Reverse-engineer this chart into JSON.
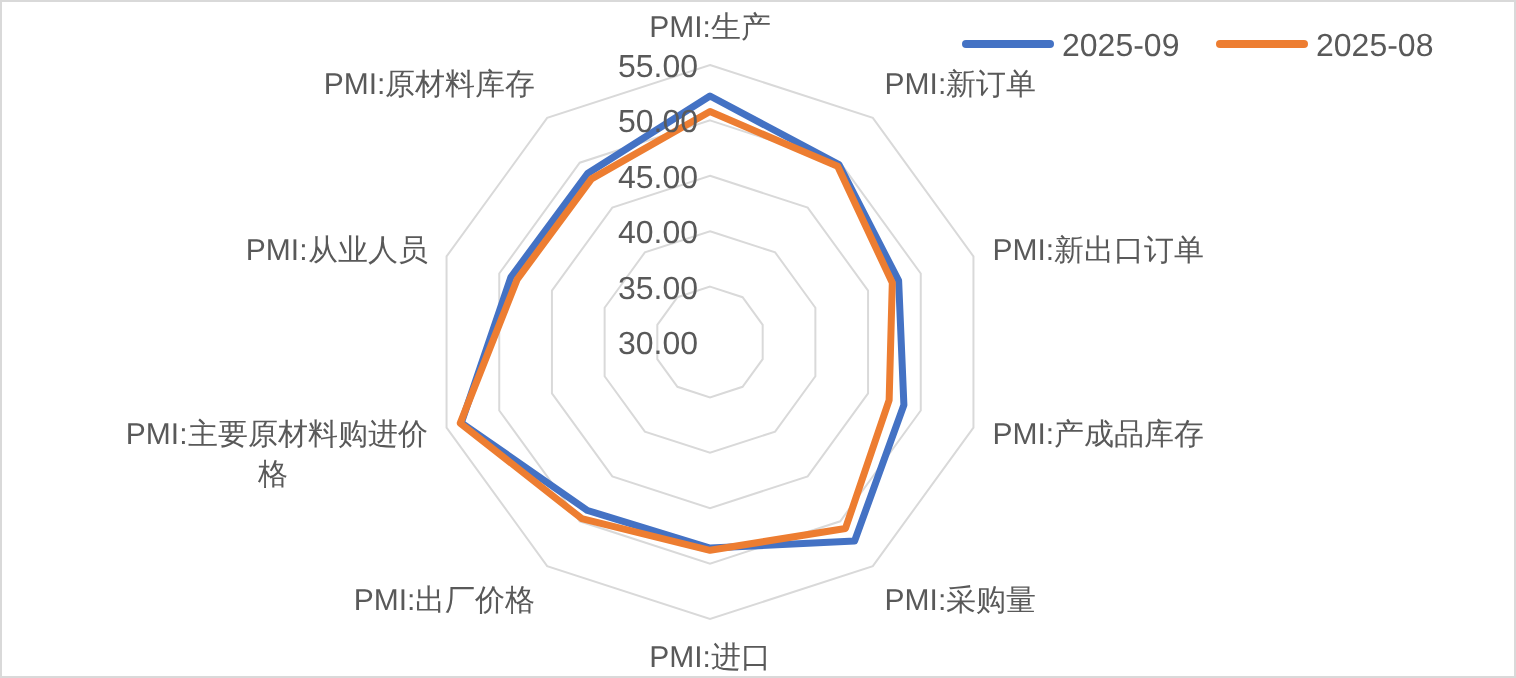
{
  "chart_data": {
    "type": "radar",
    "categories": [
      "PMI:生产",
      "PMI:新订单",
      "PMI:新出口订单",
      "PMI:产成品库存",
      "PMI:采购量",
      "PMI:进口",
      "PMI:出厂价格",
      "PMI:主要原材料购进价格",
      "PMI:从业人员",
      "PMI:原材料库存"
    ],
    "series": [
      {
        "name": "2025-09",
        "color": "#4472c4",
        "values": [
          52.2,
          49.8,
          47.9,
          48.4,
          52.2,
          48.6,
          48.8,
          53.6,
          48.9,
          48.8
        ]
      },
      {
        "name": "2025-08",
        "color": "#ed7d31",
        "values": [
          50.8,
          49.6,
          47.3,
          47.0,
          50.8,
          48.8,
          49.7,
          53.7,
          48.3,
          48.2
        ]
      }
    ],
    "ylim": [
      30,
      55
    ],
    "yticks": [
      {
        "value": 30,
        "label": "30.00"
      },
      {
        "value": 35,
        "label": "35.00"
      },
      {
        "value": 40,
        "label": "40.00"
      },
      {
        "value": 45,
        "label": "45.00"
      },
      {
        "value": 50,
        "label": "50.00"
      },
      {
        "value": 55,
        "label": "55.00"
      }
    ],
    "grid": true,
    "legend": "top right",
    "marker": "none",
    "line_style": "solid"
  }
}
